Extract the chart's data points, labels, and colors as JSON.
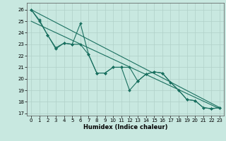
{
  "title": "",
  "xlabel": "Humidex (Indice chaleur)",
  "xlim": [
    -0.5,
    23.5
  ],
  "ylim": [
    16.8,
    26.6
  ],
  "yticks": [
    17,
    18,
    19,
    20,
    21,
    22,
    23,
    24,
    25,
    26
  ],
  "xticks": [
    0,
    1,
    2,
    3,
    4,
    5,
    6,
    7,
    8,
    9,
    10,
    11,
    12,
    13,
    14,
    15,
    16,
    17,
    18,
    19,
    20,
    21,
    22,
    23
  ],
  "background_color": "#c8e8e0",
  "grid_color": "#b0d0c8",
  "line_color": "#1a7060",
  "line1_y": [
    26.0,
    25.1,
    23.8,
    22.7,
    23.1,
    23.0,
    24.8,
    22.1,
    20.5,
    20.5,
    21.0,
    21.0,
    19.0,
    19.8,
    20.4,
    20.6,
    20.5,
    19.7,
    19.0,
    18.2,
    18.1,
    17.5,
    17.4,
    17.5
  ],
  "line2_y": [
    26.0,
    25.0,
    23.8,
    22.6,
    23.1,
    23.0,
    23.0,
    22.1,
    20.5,
    20.5,
    21.0,
    21.0,
    21.0,
    19.8,
    20.4,
    20.6,
    20.5,
    19.7,
    19.0,
    18.2,
    18.1,
    17.5,
    17.4,
    17.5
  ],
  "trend1_x": [
    0,
    23
  ],
  "trend1_y": [
    26.0,
    17.5
  ],
  "trend2_x": [
    0,
    23
  ],
  "trend2_y": [
    25.0,
    17.4
  ],
  "xlabel_fontsize": 6.0,
  "tick_fontsize": 5.0
}
